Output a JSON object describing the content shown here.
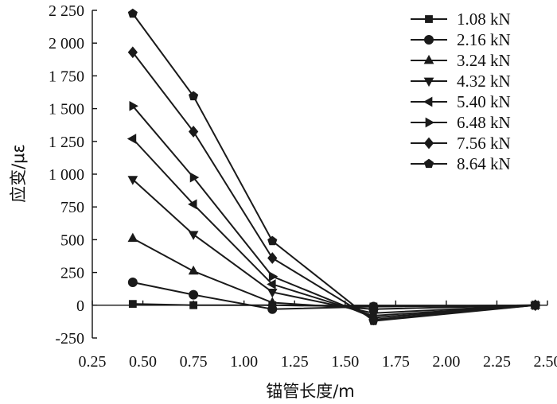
{
  "chart_data": {
    "type": "line",
    "xlabel": "锚管长度/m",
    "ylabel": "应变/με",
    "xlim": [
      0.25,
      2.5
    ],
    "ylim": [
      -250,
      2250
    ],
    "x_ticks": [
      "0.25",
      "0.50",
      "0.75",
      "1.00",
      "1.25",
      "1.50",
      "1.75",
      "2.00",
      "2.25",
      "2.50"
    ],
    "x_tick_values": [
      0.25,
      0.5,
      0.75,
      1.0,
      1.25,
      1.5,
      1.75,
      2.0,
      2.25,
      2.5
    ],
    "y_ticks": [
      "-250",
      "0",
      "250",
      "500",
      "750",
      "1 000",
      "1 250",
      "1 500",
      "1 750",
      "2 000",
      "2 250"
    ],
    "y_tick_values": [
      -250,
      0,
      250,
      500,
      750,
      1000,
      1250,
      1500,
      1750,
      2000,
      2250
    ],
    "grid": false,
    "legend_position": "top-right",
    "x": [
      0.45,
      0.75,
      1.14,
      1.64,
      2.44
    ],
    "series": [
      {
        "name": "1.08 kN",
        "marker": "square",
        "values": [
          10,
          0,
          0,
          -10,
          0
        ]
      },
      {
        "name": "2.16 kN",
        "marker": "circle",
        "values": [
          175,
          80,
          -30,
          -10,
          0
        ]
      },
      {
        "name": "3.24 kN",
        "marker": "triangle-up",
        "values": [
          510,
          260,
          20,
          -30,
          0
        ]
      },
      {
        "name": "4.32 kN",
        "marker": "triangle-down",
        "values": [
          960,
          540,
          100,
          -60,
          0
        ]
      },
      {
        "name": "5.40 kN",
        "marker": "triangle-left",
        "values": [
          1270,
          770,
          160,
          -80,
          0
        ]
      },
      {
        "name": "6.48 kN",
        "marker": "triangle-right",
        "values": [
          1520,
          975,
          220,
          -95,
          0
        ]
      },
      {
        "name": "7.56 kN",
        "marker": "diamond",
        "values": [
          1930,
          1325,
          360,
          -110,
          0
        ]
      },
      {
        "name": "8.64 kN",
        "marker": "pentagon",
        "values": [
          2225,
          1595,
          490,
          -120,
          0
        ]
      }
    ]
  }
}
